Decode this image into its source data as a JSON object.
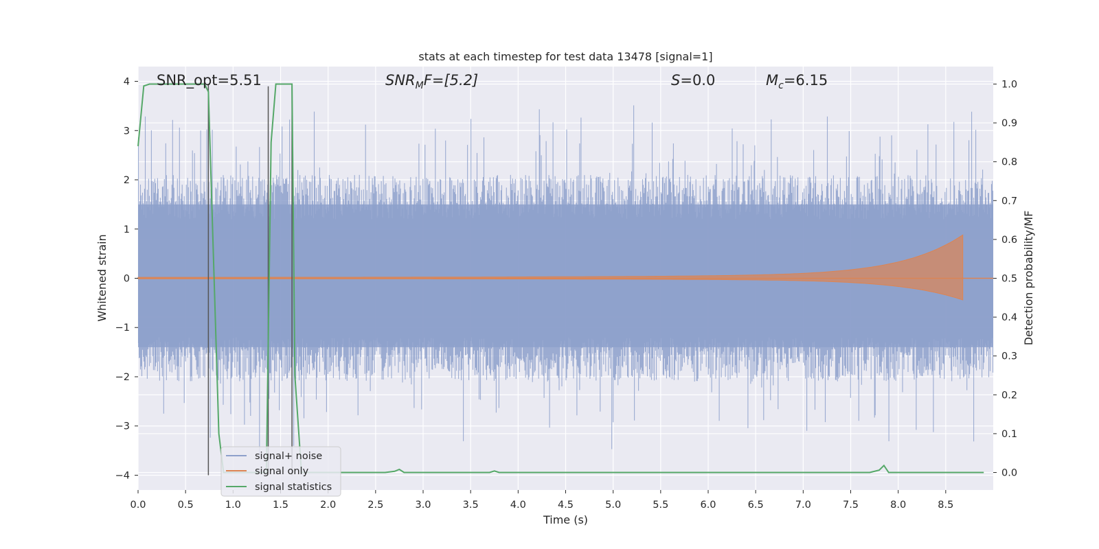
{
  "chart_data": {
    "type": "line",
    "title": "stats at each timestep for test data 13478 [signal=1]",
    "xlabel": "Time (s)",
    "ylabel_left": "Whitened strain",
    "ylabel_right": "Detection probability/MF",
    "xlim": [
      0.0,
      9.0
    ],
    "ylim_left": [
      -4.3,
      4.3
    ],
    "ylim_right": [
      -0.045,
      1.045
    ],
    "grid": true,
    "legend_position": "lower-left",
    "x_ticks": [
      "0.0",
      "0.5",
      "1.0",
      "1.5",
      "2.0",
      "2.5",
      "3.0",
      "3.5",
      "4.0",
      "4.5",
      "5.0",
      "5.5",
      "6.0",
      "6.5",
      "7.0",
      "7.5",
      "8.0",
      "8.5"
    ],
    "y_ticks_left": [
      "4",
      "3",
      "2",
      "1",
      "0",
      "−1",
      "−2",
      "−3",
      "−4"
    ],
    "y_ticks_right": [
      "1.0",
      "0.9",
      "0.8",
      "0.7",
      "0.6",
      "0.5",
      "0.4",
      "0.3",
      "0.2",
      "0.1",
      "0.0"
    ],
    "annotations": {
      "snr_opt": "SNR_opt=5.51",
      "snr_mf_prefix": "SNR",
      "snr_mf_sub": "M",
      "snr_mf_tail": "F=[5.2]",
      "s_var": "S",
      "s_value": "=0.0",
      "mc_var": "M",
      "mc_sub": "c",
      "mc_value": "=6.15"
    },
    "series": [
      {
        "name": "signal+ noise",
        "color": "#8da0cb",
        "axis": "left",
        "description_values": {
          "mean": 0.0,
          "typical_band": [
            -1.4,
            1.5
          ],
          "peaks_max": [
            3.4,
            3.8,
            3.85
          ],
          "peaks_min": [
            -3.6,
            -4.0,
            -4.05
          ]
        }
      },
      {
        "name": "signal only",
        "color": "#dd8452",
        "axis": "left",
        "chirp": {
          "start_amp": 0.02,
          "end_time": 8.68,
          "end_amp": 0.8
        }
      },
      {
        "name": "signal statistics",
        "color": "#55a868",
        "axis": "right",
        "x": [
          0.0,
          0.06,
          0.12,
          0.25,
          0.5,
          0.7,
          0.74,
          0.8,
          0.85,
          0.9,
          1.35,
          1.4,
          1.45,
          1.55,
          1.62,
          1.65,
          1.72,
          1.8,
          2.6,
          2.7,
          2.75,
          2.8,
          2.85,
          3.7,
          3.75,
          3.8,
          3.85,
          4.5,
          5.5,
          7.7,
          7.8,
          7.85,
          7.9,
          7.95,
          8.0,
          8.5,
          8.9
        ],
        "y": [
          0.84,
          0.995,
          1.0,
          1.0,
          1.0,
          1.0,
          0.98,
          0.5,
          0.1,
          0.0,
          0.0,
          0.85,
          1.0,
          1.0,
          1.0,
          0.25,
          0.0,
          0.0,
          0.0,
          0.003,
          0.008,
          0.0,
          0.0,
          0.0,
          0.004,
          0.0,
          0.0,
          0.0,
          0.0,
          0.0,
          0.006,
          0.018,
          0.0,
          0.0,
          0.0,
          0.0,
          0.0
        ]
      }
    ],
    "vertical_lines": [
      {
        "x": 0.74,
        "y_from": -4.0,
        "y_to": 3.95,
        "color": "#555555"
      },
      {
        "x": 1.37,
        "y_from": -4.0,
        "y_to": 3.9,
        "color": "#555555"
      },
      {
        "x": 1.62,
        "y_from": -4.0,
        "y_to": 3.9,
        "color": "#555555"
      }
    ]
  }
}
